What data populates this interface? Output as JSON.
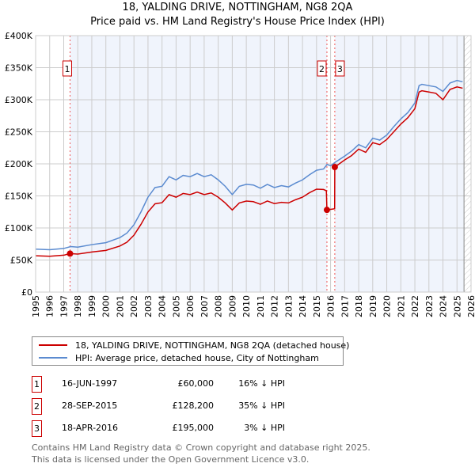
{
  "chart_data": {
    "type": "line",
    "title": "18, YALDING DRIVE, NOTTINGHAM, NG8 2QA",
    "subtitle": "Price paid vs. HM Land Registry's House Price Index (HPI)",
    "xlim": [
      1995,
      2026
    ],
    "ylim": [
      0,
      400000
    ],
    "x_ticks": [
      "1995",
      "1996",
      "1997",
      "1998",
      "1999",
      "2000",
      "2001",
      "2002",
      "2003",
      "2004",
      "2005",
      "2006",
      "2007",
      "2008",
      "2009",
      "2010",
      "2011",
      "2012",
      "2013",
      "2014",
      "2015",
      "2016",
      "2017",
      "2018",
      "2019",
      "2020",
      "2021",
      "2022",
      "2023",
      "2024",
      "2025",
      "2026"
    ],
    "y_ticks": [
      {
        "v": 0,
        "label": "£0"
      },
      {
        "v": 50000,
        "label": "£50K"
      },
      {
        "v": 100000,
        "label": "£100K"
      },
      {
        "v": 150000,
        "label": "£150K"
      },
      {
        "v": 200000,
        "label": "£200K"
      },
      {
        "v": 250000,
        "label": "£250K"
      },
      {
        "v": 300000,
        "label": "£300K"
      },
      {
        "v": 350000,
        "label": "£350K"
      },
      {
        "v": 400000,
        "label": "£400K"
      }
    ],
    "grid": true,
    "series": [
      {
        "name": "18, YALDING DRIVE, NOTTINGHAM, NG8 2QA (detached house)",
        "color": "#cc0000",
        "x": [
          1995,
          1996,
          1997,
          1997.45,
          1998,
          1999,
          2000,
          2001,
          2001.5,
          2002,
          2002.5,
          2003,
          2003.5,
          2004,
          2004.5,
          2005,
          2005.5,
          2006,
          2006.5,
          2007,
          2007.5,
          2008,
          2008.5,
          2009,
          2009.5,
          2010,
          2010.5,
          2011,
          2011.5,
          2012,
          2012.5,
          2013,
          2013.5,
          2014,
          2014.5,
          2015,
          2015.5,
          2015.7,
          2015.74,
          2016.0,
          2016.29,
          2016.3,
          2017,
          2017.5,
          2018,
          2018.5,
          2019,
          2019.5,
          2020,
          2020.5,
          2021,
          2021.5,
          2022,
          2022.3,
          2022.5,
          2023,
          2023.5,
          2024,
          2024.5,
          2025,
          2025.4
        ],
        "y": [
          56600,
          55800,
          57500,
          60000,
          59200,
          62500,
          65000,
          71800,
          77700,
          88700,
          105600,
          125000,
          137700,
          139400,
          152000,
          148000,
          153800,
          152000,
          156000,
          152000,
          154600,
          148000,
          139000,
          128000,
          139000,
          142000,
          141000,
          137000,
          142000,
          138000,
          140000,
          139000,
          144000,
          148000,
          155000,
          160500,
          160000,
          158000,
          128200,
          129000,
          130000,
          195000,
          206000,
          213000,
          223000,
          218000,
          233000,
          230000,
          238000,
          250000,
          262000,
          272000,
          286000,
          312000,
          314000,
          312000,
          310000,
          300000,
          316000,
          320000,
          318000
        ]
      },
      {
        "name": "HPI: Average price, detached house, City of Nottingham",
        "color": "#5b8bd0",
        "x": [
          1995,
          1996,
          1997,
          1997.5,
          1998,
          1999,
          2000,
          2001,
          2001.5,
          2002,
          2002.5,
          2003,
          2003.5,
          2004,
          2004.5,
          2005,
          2005.5,
          2006,
          2006.5,
          2007,
          2007.5,
          2008,
          2008.5,
          2009,
          2009.5,
          2010,
          2010.5,
          2011,
          2011.5,
          2012,
          2012.5,
          2013,
          2013.5,
          2014,
          2014.5,
          2015,
          2015.5,
          2015.75,
          2016,
          2016.3,
          2017,
          2017.5,
          2018,
          2018.5,
          2019,
          2019.5,
          2020,
          2020.5,
          2021,
          2021.5,
          2022,
          2022.3,
          2022.5,
          2023,
          2023.5,
          2024,
          2024.5,
          2025,
          2025.4
        ],
        "y": [
          67000,
          66000,
          68000,
          71000,
          70000,
          74000,
          77000,
          85000,
          92000,
          105000,
          125000,
          148000,
          163000,
          165000,
          180000,
          175000,
          182000,
          180000,
          185000,
          180000,
          183000,
          175000,
          165000,
          152000,
          165000,
          168000,
          167000,
          162000,
          168000,
          163000,
          166000,
          164000,
          170000,
          175000,
          183000,
          190000,
          192000,
          199000,
          197000,
          202000,
          212000,
          220000,
          230000,
          225000,
          240000,
          237000,
          245000,
          258000,
          270000,
          280000,
          295000,
          322000,
          324000,
          322000,
          320000,
          313000,
          326000,
          330000,
          328000
        ]
      }
    ],
    "sales": [
      {
        "id": "1",
        "x": 1997.45,
        "price": 60000,
        "date": "16-JUN-1997",
        "price_label": "£60,000",
        "hpi": "16% ↓ HPI"
      },
      {
        "id": "2",
        "x": 2015.74,
        "price": 128200,
        "date": "28-SEP-2015",
        "price_label": "£128,200",
        "hpi": "35% ↓ HPI"
      },
      {
        "id": "3",
        "x": 2016.3,
        "price": 195000,
        "date": "18-APR-2016",
        "price_label": "£195,000",
        "hpi": "3% ↓ HPI"
      }
    ],
    "legend_placement": "below"
  },
  "footer": {
    "line1": "Contains HM Land Registry data © Crown copyright and database right 2025.",
    "line2": "This data is licensed under the Open Government Licence v3.0."
  }
}
